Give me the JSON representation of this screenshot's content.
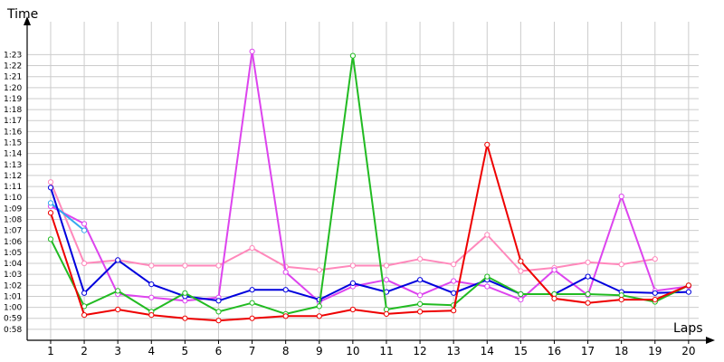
{
  "chart_data": {
    "type": "line",
    "xlabel": "Laps",
    "ylabel": "Time",
    "x": [
      1,
      2,
      3,
      4,
      5,
      6,
      7,
      8,
      9,
      10,
      11,
      12,
      13,
      14,
      15,
      16,
      17,
      18,
      19,
      20
    ],
    "xlim": [
      0.3,
      20.3
    ],
    "ylim_seconds": [
      57,
      86
    ],
    "y_tick_seconds": [
      58,
      59,
      60,
      61,
      62,
      63,
      64,
      65,
      66,
      67,
      68,
      69,
      70,
      71,
      72,
      73,
      74,
      75,
      76,
      77,
      78,
      79,
      80,
      81,
      82,
      83
    ],
    "y_tick_labels": [
      "0:58",
      "0:59",
      "1:00",
      "1:01",
      "1:02",
      "1:03",
      "1:04",
      "1:05",
      "1:06",
      "1:07",
      "1:08",
      "1:09",
      "1:10",
      "1:11",
      "1:12",
      "1:13",
      "1:14",
      "1:15",
      "1:16",
      "1:17",
      "1:18",
      "1:19",
      "1:20",
      "1:21",
      "1:22",
      "1:23"
    ],
    "x_tick_labels": [
      "1",
      "2",
      "3",
      "4",
      "5",
      "6",
      "7",
      "8",
      "9",
      "10",
      "11",
      "12",
      "13",
      "14",
      "15",
      "16",
      "17",
      "18",
      "19",
      "20"
    ],
    "grid": true,
    "series": [
      {
        "color": "#ff88bb",
        "values": [
          71.4,
          64.0,
          64.3,
          63.8,
          63.8,
          63.8,
          65.4,
          63.7,
          63.4,
          63.8,
          63.8,
          64.4,
          63.9,
          66.6,
          63.3,
          63.6,
          64.1,
          63.9,
          64.4,
          null
        ]
      },
      {
        "color": "#dd44ee",
        "values": [
          69.2,
          67.6,
          61.2,
          60.9,
          60.6,
          60.9,
          83.3,
          63.2,
          60.5,
          61.9,
          62.5,
          61.1,
          62.4,
          61.9,
          60.7,
          63.4,
          61.1,
          70.1,
          61.5,
          61.9
        ]
      },
      {
        "color": "#33aaee",
        "values": [
          69.5,
          67.0,
          null,
          null,
          null,
          null,
          null,
          null,
          null,
          null,
          null,
          null,
          null,
          null,
          null,
          null,
          null,
          null,
          null,
          null
        ]
      },
      {
        "color": "#0000dd",
        "values": [
          70.9,
          61.3,
          64.3,
          62.1,
          61.0,
          60.6,
          61.6,
          61.6,
          60.7,
          62.2,
          61.4,
          62.5,
          61.3,
          62.5,
          61.2,
          61.2,
          62.8,
          61.4,
          61.3,
          61.4
        ]
      },
      {
        "color": "#22bb22",
        "values": [
          66.2,
          60.1,
          61.5,
          59.6,
          61.3,
          59.6,
          60.4,
          59.4,
          60.1,
          82.9,
          59.8,
          60.3,
          60.2,
          62.8,
          61.2,
          61.2,
          61.2,
          61.1,
          60.5,
          62.0
        ]
      },
      {
        "color": "#ee0000",
        "values": [
          68.6,
          59.3,
          59.8,
          59.3,
          59.0,
          58.8,
          59.0,
          59.2,
          59.2,
          59.8,
          59.4,
          59.6,
          59.7,
          74.8,
          64.2,
          60.8,
          60.4,
          60.7,
          60.7,
          62.0
        ]
      }
    ]
  }
}
